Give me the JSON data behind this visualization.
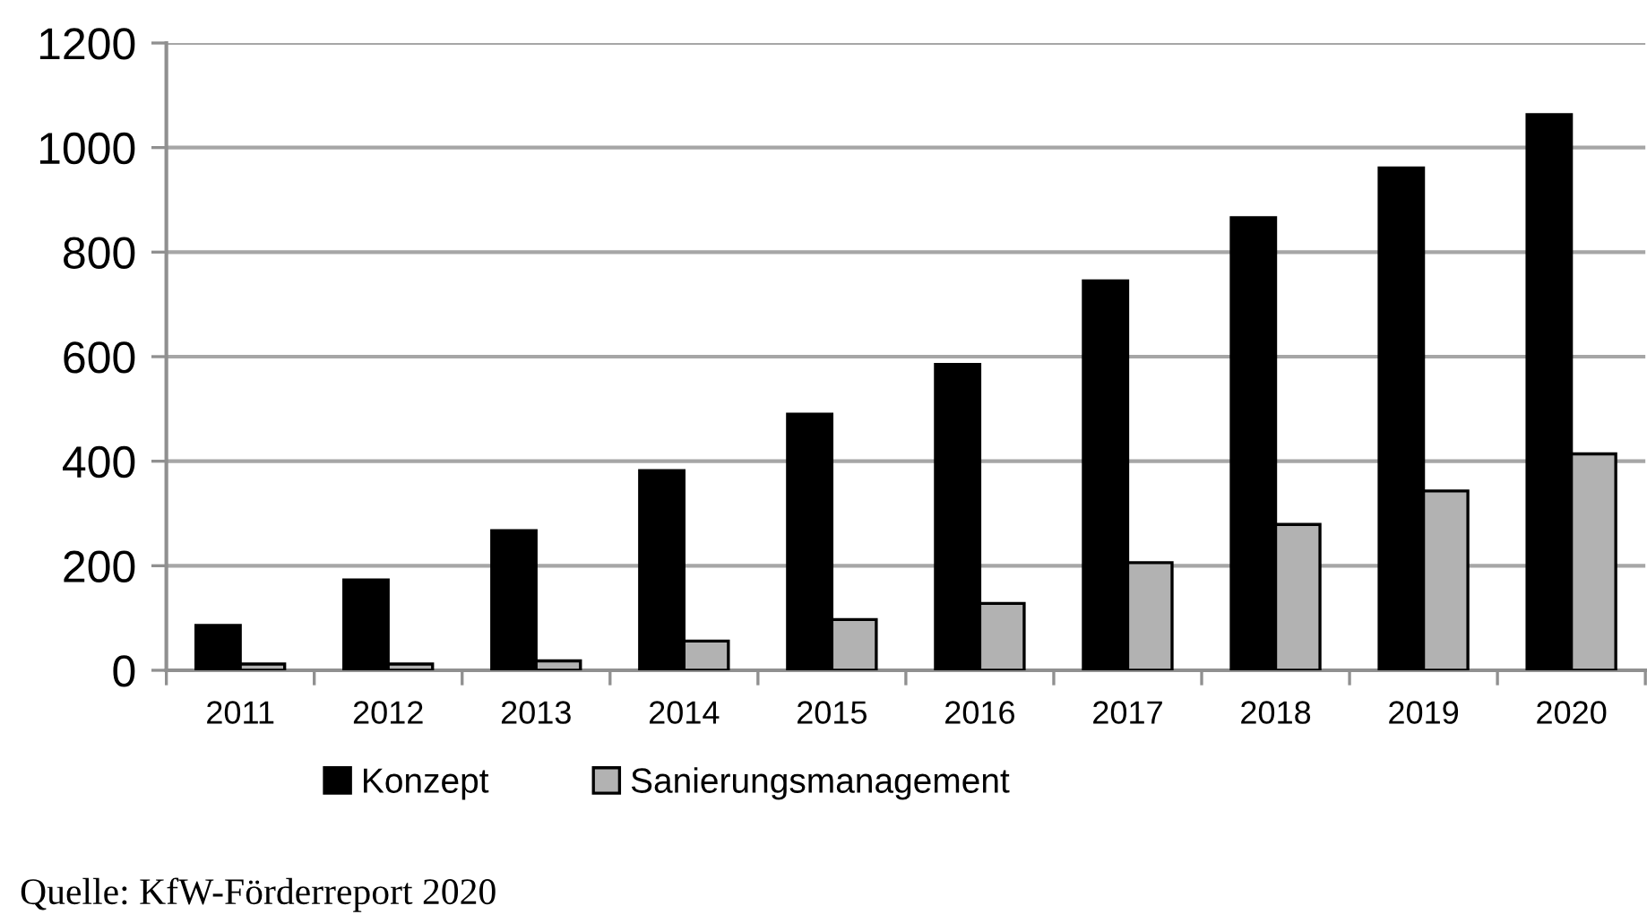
{
  "chart_data": {
    "type": "bar",
    "categories": [
      "2011",
      "2012",
      "2013",
      "2014",
      "2015",
      "2016",
      "2017",
      "2018",
      "2019",
      "2020"
    ],
    "series": [
      {
        "name": "Konzept",
        "color": "#000000",
        "values": [
          86,
          173,
          267,
          382,
          490,
          585,
          745,
          866,
          961,
          1063
        ]
      },
      {
        "name": "Sanierungsmanagement",
        "color": "#b2b2b2",
        "values": [
          12,
          12,
          18,
          56,
          97,
          128,
          206,
          279,
          343,
          414
        ]
      }
    ],
    "ylim": [
      0,
      1200
    ],
    "yticks": [
      0,
      200,
      400,
      600,
      800,
      1000,
      1200
    ],
    "grid": "y",
    "legend": "bottom",
    "annotations": [
      "Quelle: KfW-Förderreport 2020"
    ]
  }
}
